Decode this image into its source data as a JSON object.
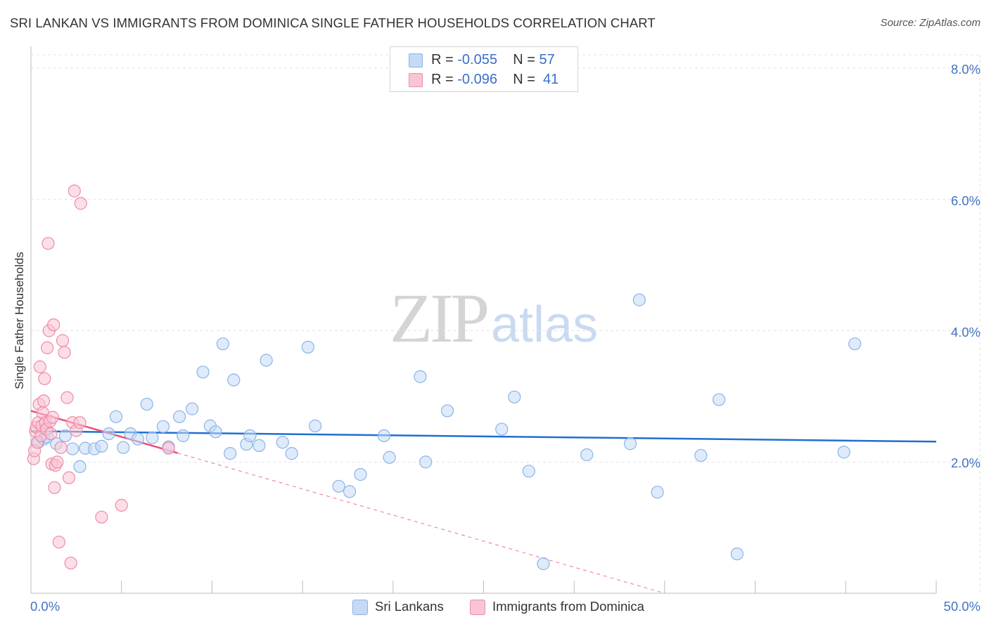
{
  "chart_data": {
    "type": "scatter",
    "title": "SRI LANKAN VS IMMIGRANTS FROM DOMINICA SINGLE FATHER HOUSEHOLDS CORRELATION CHART",
    "source": "Source: ZipAtlas.com",
    "xlabel": "",
    "ylabel": "Single Father Households",
    "xlim": [
      0,
      50
    ],
    "ylim": [
      0,
      8
    ],
    "x_tick_labels": [
      {
        "value": 0,
        "label": "0.0%"
      },
      {
        "value": 50,
        "label": "50.0%"
      }
    ],
    "y_tick_labels": [
      {
        "value": 2,
        "label": "2.0%"
      },
      {
        "value": 4,
        "label": "4.0%"
      },
      {
        "value": 6,
        "label": "6.0%"
      },
      {
        "value": 8,
        "label": "8.0%"
      }
    ],
    "grid": true,
    "watermark": {
      "part1": "ZIP",
      "part2": "atlas"
    },
    "legend_top": [
      {
        "r_label": "R =",
        "r_value": "-0.055",
        "n_label": "N =",
        "n_value": "57"
      },
      {
        "r_label": "R =",
        "r_value": "-0.096",
        "n_label": "N =",
        "n_value": "41"
      }
    ],
    "series": [
      {
        "name": "Sri Lankans",
        "color": "#8ab4e8",
        "fill": "#c5daf5",
        "line_color": "#1f6fd1",
        "trend": {
          "x0": 0,
          "y0": 2.47,
          "x1": 50,
          "y1": 2.31,
          "solid_to": 50
        },
        "points": [
          [
            0.4,
            2.3
          ],
          [
            0.7,
            2.35
          ],
          [
            0.9,
            2.38
          ],
          [
            1.4,
            2.28
          ],
          [
            1.9,
            2.4
          ],
          [
            2.3,
            2.2
          ],
          [
            2.7,
            1.93
          ],
          [
            3.0,
            2.21
          ],
          [
            3.5,
            2.2
          ],
          [
            3.9,
            2.24
          ],
          [
            4.3,
            2.43
          ],
          [
            4.7,
            2.69
          ],
          [
            5.1,
            2.22
          ],
          [
            5.5,
            2.43
          ],
          [
            5.9,
            2.35
          ],
          [
            6.4,
            2.88
          ],
          [
            6.7,
            2.37
          ],
          [
            7.3,
            2.54
          ],
          [
            7.6,
            2.23
          ],
          [
            8.2,
            2.69
          ],
          [
            8.4,
            2.4
          ],
          [
            8.9,
            2.81
          ],
          [
            9.5,
            3.37
          ],
          [
            9.9,
            2.55
          ],
          [
            10.2,
            2.46
          ],
          [
            10.6,
            3.8
          ],
          [
            11.0,
            2.13
          ],
          [
            11.2,
            3.25
          ],
          [
            11.9,
            2.27
          ],
          [
            12.1,
            2.4
          ],
          [
            12.6,
            2.25
          ],
          [
            13.0,
            3.55
          ],
          [
            13.9,
            2.3
          ],
          [
            14.4,
            2.13
          ],
          [
            15.3,
            3.75
          ],
          [
            15.7,
            2.55
          ],
          [
            17.0,
            1.63
          ],
          [
            17.6,
            1.55
          ],
          [
            18.2,
            1.81
          ],
          [
            19.5,
            2.4
          ],
          [
            19.8,
            2.07
          ],
          [
            21.5,
            3.3
          ],
          [
            21.8,
            2.0
          ],
          [
            23.0,
            2.78
          ],
          [
            26.0,
            2.5
          ],
          [
            26.7,
            2.99
          ],
          [
            27.5,
            1.86
          ],
          [
            28.3,
            0.45
          ],
          [
            30.7,
            2.11
          ],
          [
            33.1,
            2.28
          ],
          [
            33.6,
            4.47
          ],
          [
            34.6,
            1.54
          ],
          [
            37.0,
            2.1
          ],
          [
            38.0,
            2.95
          ],
          [
            39.0,
            0.6
          ],
          [
            44.9,
            2.15
          ],
          [
            45.5,
            3.8
          ]
        ]
      },
      {
        "name": "Immigrants from Dominica",
        "color": "#f08aa6",
        "fill": "#f8c5d4",
        "line_color": "#e8507d",
        "trend": {
          "x0": 0,
          "y0": 2.78,
          "x1": 35,
          "y1": 0.0,
          "solid_to": 8.1
        },
        "points": [
          [
            0.15,
            2.05
          ],
          [
            0.2,
            2.17
          ],
          [
            0.25,
            2.47
          ],
          [
            0.3,
            2.53
          ],
          [
            0.35,
            2.3
          ],
          [
            0.4,
            2.6
          ],
          [
            0.45,
            2.88
          ],
          [
            0.5,
            3.45
          ],
          [
            0.55,
            2.4
          ],
          [
            0.6,
            2.55
          ],
          [
            0.65,
            2.75
          ],
          [
            0.7,
            2.93
          ],
          [
            0.75,
            3.27
          ],
          [
            0.8,
            2.6
          ],
          [
            0.85,
            2.5
          ],
          [
            0.9,
            3.74
          ],
          [
            0.95,
            5.33
          ],
          [
            1.0,
            4.0
          ],
          [
            1.05,
            2.62
          ],
          [
            1.1,
            2.43
          ],
          [
            1.15,
            1.97
          ],
          [
            1.2,
            2.68
          ],
          [
            1.25,
            4.09
          ],
          [
            1.3,
            1.61
          ],
          [
            1.35,
            1.95
          ],
          [
            1.45,
            2.0
          ],
          [
            1.55,
            0.78
          ],
          [
            1.65,
            2.22
          ],
          [
            1.75,
            3.85
          ],
          [
            1.85,
            3.67
          ],
          [
            2.0,
            2.98
          ],
          [
            2.1,
            1.76
          ],
          [
            2.2,
            0.46
          ],
          [
            2.3,
            2.6
          ],
          [
            2.4,
            6.13
          ],
          [
            2.5,
            2.48
          ],
          [
            2.7,
            2.6
          ],
          [
            2.75,
            5.94
          ],
          [
            3.9,
            1.16
          ],
          [
            5.0,
            1.34
          ],
          [
            7.6,
            2.21
          ]
        ]
      }
    ]
  }
}
